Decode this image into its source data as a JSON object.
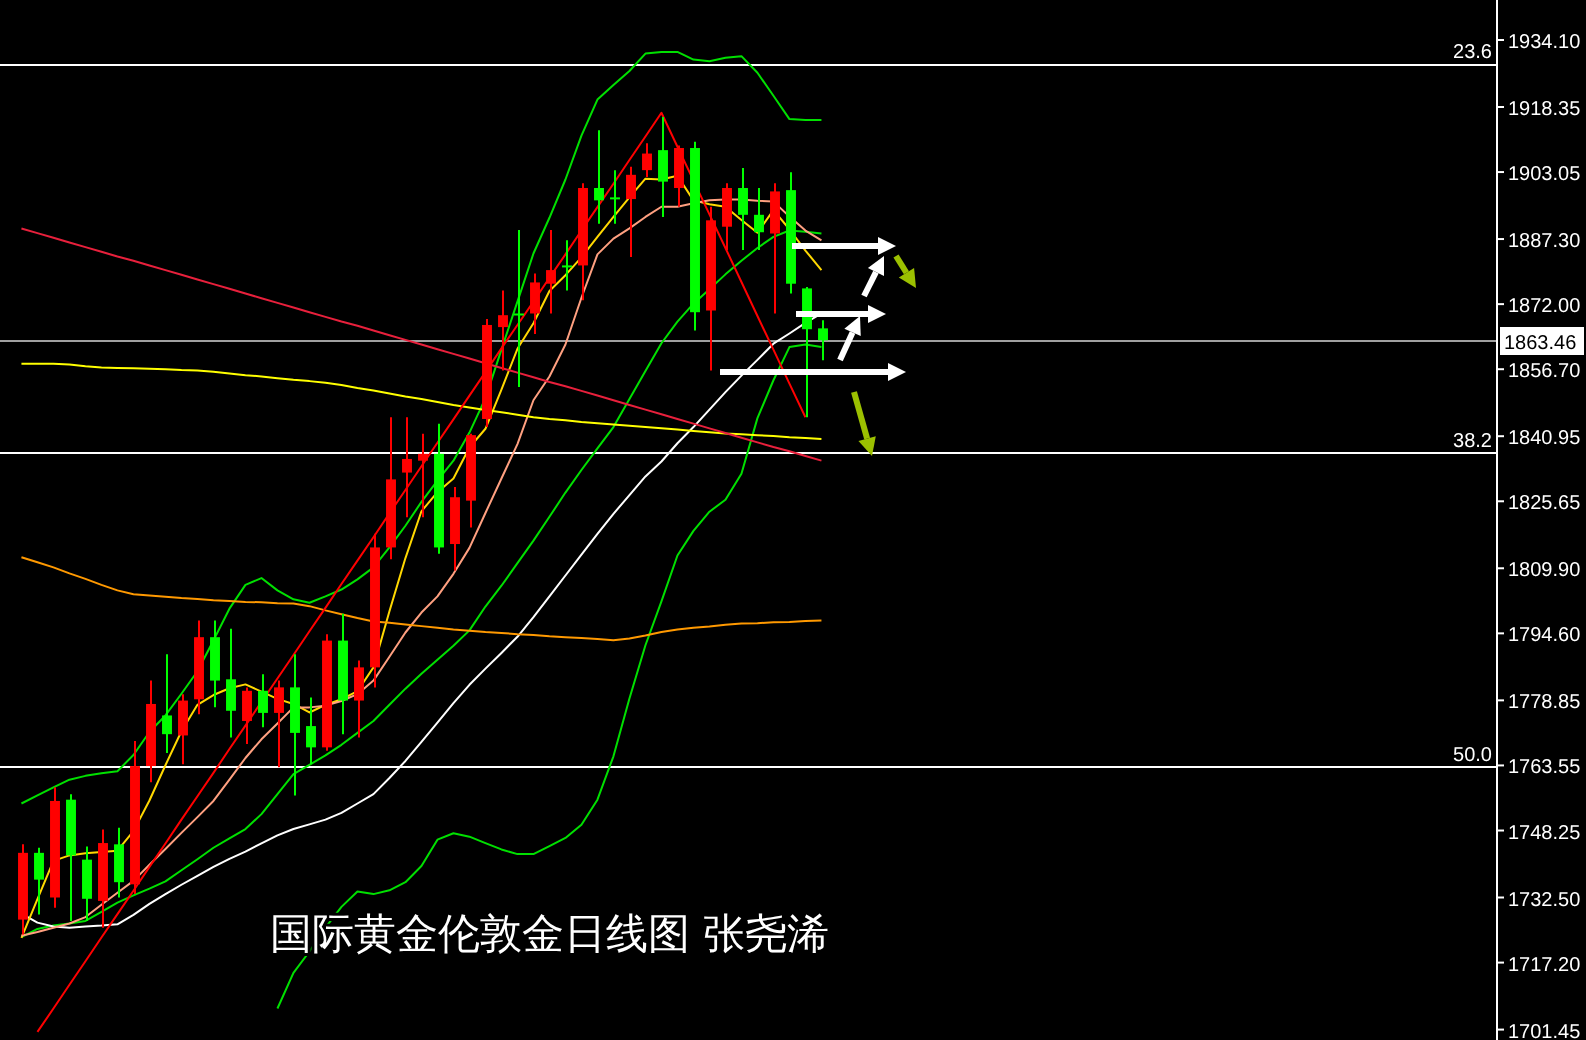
{
  "chart_data": {
    "type": "candlestick",
    "annotations": [
      "国际黄金伦敦金日线图 张尧浠",
      {
        "text": "23.6",
        "y": 1928.45
      },
      {
        "text": "38.2",
        "y": 1837.1
      },
      {
        "text": "50.0",
        "y": 1763.2
      }
    ],
    "categories": [
      null,
      null,
      null,
      null,
      null,
      null,
      null,
      null,
      null,
      null,
      null,
      null,
      null,
      null,
      null,
      null,
      null,
      null,
      null,
      null,
      null,
      null,
      null,
      null,
      null,
      null,
      null,
      null,
      null,
      null,
      null,
      null,
      null,
      null,
      null,
      null,
      null,
      null,
      null,
      null,
      null,
      null,
      null,
      null,
      null,
      null,
      null,
      null,
      null,
      null,
      null
    ],
    "ohlc": [
      [
        1727.3,
        1745.0,
        1723.8,
        1743.0
      ],
      [
        1743.0,
        1744.2,
        1728.5,
        1736.7
      ],
      [
        1732.5,
        1758.4,
        1730.1,
        1755.2
      ],
      [
        1755.5,
        1756.8,
        1727.0,
        1742.4
      ],
      [
        1741.4,
        1744.5,
        1727.0,
        1732.2
      ],
      [
        1731.7,
        1748.5,
        1725.4,
        1745.3
      ],
      [
        1745.0,
        1748.9,
        1732.5,
        1736.1
      ],
      [
        1735.6,
        1769.3,
        1733.3,
        1763.4
      ],
      [
        1763.4,
        1783.5,
        1759.6,
        1778.0
      ],
      [
        1775.3,
        1789.7,
        1766.5,
        1770.9
      ],
      [
        1770.6,
        1780.3,
        1763.8,
        1778.8
      ],
      [
        1779.1,
        1797.6,
        1775.6,
        1793.7
      ],
      [
        1793.7,
        1797.6,
        1777.2,
        1783.5
      ],
      [
        1783.8,
        1795.7,
        1770.1,
        1776.4
      ],
      [
        1774.0,
        1781.9,
        1768.6,
        1781.1
      ],
      [
        1781.1,
        1785.0,
        1772.5,
        1775.9
      ],
      [
        1775.9,
        1783.5,
        1763.1,
        1781.9
      ],
      [
        1781.9,
        1789.7,
        1756.5,
        1771.2
      ],
      [
        1772.8,
        1779.5,
        1763.8,
        1767.8
      ],
      [
        1767.8,
        1794.4,
        1767.0,
        1792.9
      ],
      [
        1792.9,
        1799.2,
        1770.9,
        1778.8
      ],
      [
        1778.8,
        1788.2,
        1770.1,
        1786.6
      ],
      [
        1786.6,
        1818.0,
        1781.9,
        1814.8
      ],
      [
        1814.8,
        1845.4,
        1812.0,
        1830.8
      ],
      [
        1832.4,
        1845.4,
        1821.9,
        1835.6
      ],
      [
        1835.2,
        1841.5,
        1821.9,
        1836.8
      ],
      [
        1836.8,
        1843.9,
        1813.3,
        1814.8
      ],
      [
        1815.6,
        1829.0,
        1809.4,
        1826.6
      ],
      [
        1825.8,
        1841.5,
        1819.5,
        1841.2
      ],
      [
        1845.0,
        1868.5,
        1843.1,
        1867.1
      ],
      [
        1866.6,
        1875.2,
        1856.4,
        1869.4
      ],
      [
        1869.8,
        1889.4,
        1852.5,
        1869.4
      ],
      [
        1869.8,
        1879.2,
        1865.0,
        1877.1
      ],
      [
        1876.8,
        1889.4,
        1869.8,
        1880.0
      ],
      [
        1881.1,
        1887.0,
        1875.2,
        1880.7
      ],
      [
        1881.1,
        1900.4,
        1872.9,
        1899.3
      ],
      [
        1899.3,
        1912.9,
        1890.9,
        1896.4
      ],
      [
        1897.1,
        1903.5,
        1890.9,
        1896.7
      ],
      [
        1896.7,
        1904.3,
        1883.1,
        1902.4
      ],
      [
        1903.5,
        1909.8,
        1901.9,
        1907.4
      ],
      [
        1908.2,
        1916.0,
        1892.5,
        1900.8
      ],
      [
        1899.3,
        1909.3,
        1894.9,
        1908.7
      ],
      [
        1908.7,
        1910.2,
        1865.8,
        1870.1
      ],
      [
        1870.5,
        1894.9,
        1856.4,
        1891.7
      ],
      [
        1890.2,
        1900.4,
        1884.7,
        1899.3
      ],
      [
        1899.3,
        1904.0,
        1884.7,
        1893.0
      ],
      [
        1893.0,
        1899.3,
        1884.7,
        1888.9
      ],
      [
        1888.6,
        1900.4,
        1869.8,
        1898.5
      ],
      [
        1898.8,
        1903.0,
        1874.5,
        1876.8
      ],
      [
        1875.7,
        1876.0,
        1845.4,
        1866.1
      ],
      [
        1866.3,
        1868.2,
        1858.8,
        1863.5
      ]
    ],
    "colors": [
      "#ff0000",
      "#00ff00",
      "#ff0000",
      "#00ff00",
      "#00ff00",
      "#ff0000",
      "#00ff00",
      "#ff0000",
      "#ff0000",
      "#00ff00",
      "#ff0000",
      "#ff0000",
      "#00ff00",
      "#00ff00",
      "#ff0000",
      "#00ff00",
      "#ff0000",
      "#00ff00",
      "#00ff00",
      "#ff0000",
      "#00ff00",
      "#ff0000",
      "#ff0000",
      "#ff0000",
      "#ff0000",
      "#ff0000",
      "#00ff00",
      "#ff0000",
      "#ff0000",
      "#ff0000",
      "#ff0000",
      "#00ff00",
      "#ff0000",
      "#ff0000",
      "#00ff00",
      "#ff0000",
      "#00ff00",
      "#00ff00",
      "#ff0000",
      "#ff0000",
      "#00ff00",
      "#ff0000",
      "#00ff00",
      "#ff0000",
      "#ff0000",
      "#00ff00",
      "#00ff00",
      "#ff0000",
      "#00ff00",
      "#00ff00",
      "#00ff00"
    ],
    "series": [
      {
        "type": "line",
        "color": "#00e000",
        "values": [
          1754.6,
          1756.5,
          1758.4,
          1760.2,
          1761.1,
          1761.7,
          1762.2,
          1766.0,
          1771.4,
          1775.3,
          1780.4,
          1785.7,
          1792.9,
          1800.4,
          1806.0,
          1807.6,
          1804.7,
          1802.6,
          1801.8,
          1803.3,
          1804.9,
          1807.3,
          1810.1,
          1814.8,
          1819.9,
          1825.5,
          1830.5,
          1835.2,
          1841.8,
          1849.9,
          1861.3,
          1872.6,
          1883.9,
          1892.3,
          1901.3,
          1911.6,
          1920.1,
          1923.5,
          1926.8,
          1930.9,
          1931.3,
          1931.3,
          1929.5,
          1929.1,
          1929.9,
          1930.3,
          1926.4,
          1921.0,
          1915.5,
          1915.3,
          1915.3
        ]
      },
      {
        "type": "line",
        "color": "#00e000",
        "values": [
          1723.2,
          1725.1,
          1725.9,
          1726.4,
          1727.0,
          1729.1,
          1731.3,
          1733.0,
          1734.6,
          1736.3,
          1738.9,
          1741.5,
          1744.2,
          1746.4,
          1748.6,
          1752.1,
          1756.8,
          1761.5,
          1763.7,
          1765.9,
          1768.4,
          1771.2,
          1774.0,
          1777.8,
          1781.6,
          1785.1,
          1788.4,
          1791.7,
          1795.3,
          1800.9,
          1805.8,
          1811.1,
          1816.4,
          1822.0,
          1827.7,
          1833.0,
          1838.1,
          1843.1,
          1849.7,
          1856.3,
          1862.8,
          1867.9,
          1872.1,
          1875.5,
          1879.0,
          1882.2,
          1885.2,
          1887.8,
          1889.3,
          1889.0,
          1888.6
        ]
      },
      {
        "type": "line",
        "color": "#00e000",
        "values": [
          null,
          null,
          null,
          null,
          null,
          null,
          null,
          null,
          null,
          null,
          null,
          null,
          null,
          null,
          null,
          null,
          1706.4,
          1714.8,
          1719.8,
          1725.4,
          1730.3,
          1733.9,
          1733.3,
          1734.2,
          1736.1,
          1739.9,
          1746.1,
          1747.6,
          1746.8,
          1745.3,
          1743.8,
          1742.7,
          1742.7,
          1744.6,
          1746.5,
          1749.6,
          1755.5,
          1765.7,
          1779.3,
          1791.8,
          1802.1,
          1812.9,
          1818.7,
          1823.2,
          1826.0,
          1832.1,
          1845.2,
          1854.1,
          1861.9,
          1862.5,
          1861.9
        ]
      },
      {
        "type": "line",
        "color": "#ffffff",
        "values": [
          1728.7,
          1726.6,
          1725.7,
          1725.4,
          1725.7,
          1725.9,
          1726.2,
          1728.4,
          1731.0,
          1733.3,
          1735.5,
          1737.6,
          1739.7,
          1741.6,
          1743.3,
          1745.2,
          1747.1,
          1748.6,
          1749.7,
          1750.8,
          1752.4,
          1754.6,
          1756.8,
          1760.6,
          1764.6,
          1769.1,
          1773.6,
          1778.2,
          1782.5,
          1786.3,
          1790.0,
          1793.8,
          1798.4,
          1803.3,
          1808.2,
          1813.1,
          1818.0,
          1822.7,
          1827.1,
          1831.5,
          1835.0,
          1839.3,
          1843.1,
          1847.2,
          1851.3,
          1855.2,
          1858.9,
          1862.7,
          1865.1,
          1867.6,
          1869.8
        ]
      },
      {
        "type": "line",
        "color": "#ffd800",
        "values": [
          1723.0,
          1732.1,
          1741.1,
          1742.4,
          1742.9,
          1743.2,
          1743.5,
          1748.1,
          1755.3,
          1763.6,
          1771.6,
          1777.8,
          1780.1,
          1781.7,
          1782.6,
          1780.9,
          1779.2,
          1778.0,
          1776.0,
          1777.8,
          1779.1,
          1781.0,
          1786.6,
          1799.8,
          1812.3,
          1823.3,
          1827.8,
          1831.0,
          1838.3,
          1842.7,
          1851.9,
          1861.5,
          1867.5,
          1875.1,
          1878.8,
          1883.0,
          1887.8,
          1892.5,
          1897.1,
          1901.5,
          1901.3,
          1902.2,
          1896.4,
          1895.5,
          1894.9,
          1891.8,
          1888.8,
          1894.1,
          1889.6,
          1884.6,
          1880.0
        ]
      },
      {
        "type": "line",
        "color": "#ffa080",
        "values": [
          1723.5,
          1724.4,
          1725.4,
          1726.4,
          1727.9,
          1730.8,
          1733.6,
          1736.4,
          1740.2,
          1743.9,
          1747.7,
          1751.4,
          1755.2,
          1760.2,
          1765.3,
          1769.7,
          1773.4,
          1777.2,
          1777.2,
          1777.6,
          1778.7,
          1780.3,
          1783.5,
          1789.1,
          1794.8,
          1799.5,
          1803.3,
          1808.6,
          1814.7,
          1822.9,
          1831.0,
          1839.1,
          1849.4,
          1855.0,
          1862.5,
          1873.5,
          1883.7,
          1887.4,
          1889.8,
          1892.5,
          1894.9,
          1894.9,
          1895.7,
          1896.4,
          1896.6,
          1896.6,
          1896.3,
          1896.1,
          1892.6,
          1889.3,
          1887.0
        ]
      },
      {
        "type": "line",
        "color": "#ff9900",
        "values": [
          1812.5,
          1811.3,
          1810.1,
          1808.7,
          1807.4,
          1806.0,
          1804.7,
          1803.8,
          1803.5,
          1803.2,
          1802.9,
          1802.7,
          1802.4,
          1802.2,
          1802.0,
          1801.9,
          1801.7,
          1801.6,
          1801.0,
          1800.0,
          1799.1,
          1798.2,
          1797.4,
          1797.1,
          1796.7,
          1796.3,
          1795.9,
          1795.5,
          1795.2,
          1794.9,
          1794.7,
          1794.4,
          1794.2,
          1793.9,
          1793.7,
          1793.5,
          1793.3,
          1793.0,
          1793.4,
          1794.1,
          1794.9,
          1795.5,
          1795.9,
          1796.2,
          1796.6,
          1796.9,
          1797.0,
          1797.2,
          1797.3,
          1797.5,
          1797.6
        ]
      },
      {
        "type": "line",
        "color": "#ffff00",
        "values": [
          1858.0,
          1858.0,
          1858.0,
          1857.8,
          1857.4,
          1857.1,
          1857.0,
          1856.9,
          1856.8,
          1856.7,
          1856.5,
          1856.4,
          1856.1,
          1855.7,
          1855.3,
          1855.0,
          1854.6,
          1854.2,
          1853.9,
          1853.5,
          1853.0,
          1852.3,
          1851.7,
          1851.0,
          1850.3,
          1849.7,
          1849.0,
          1848.3,
          1847.7,
          1847.1,
          1846.6,
          1846.0,
          1845.4,
          1845.0,
          1844.7,
          1844.3,
          1844.0,
          1843.7,
          1843.4,
          1843.1,
          1842.8,
          1842.5,
          1842.2,
          1841.9,
          1841.6,
          1841.4,
          1841.2,
          1841.0,
          1840.7,
          1840.5,
          1840.3
        ]
      },
      {
        "type": "line",
        "color": "#e8203c",
        "values": [
          1889.8,
          1888.7,
          1887.6,
          1886.5,
          1885.4,
          1884.3,
          1883.2,
          1882.2,
          1881.1,
          1880.0,
          1878.9,
          1877.8,
          1876.7,
          1875.6,
          1874.5,
          1873.4,
          1872.3,
          1871.2,
          1870.1,
          1869.0,
          1867.9,
          1866.9,
          1865.8,
          1864.7,
          1863.6,
          1862.5,
          1861.4,
          1860.3,
          1859.2,
          1858.1,
          1857.0,
          1855.9,
          1854.8,
          1853.7,
          1852.7,
          1851.6,
          1850.5,
          1849.4,
          1848.3,
          1847.2,
          1846.1,
          1845.0,
          1843.9,
          1842.8,
          1841.7,
          1840.6,
          1839.5,
          1838.4,
          1837.4,
          1836.3,
          1835.2
        ]
      },
      {
        "type": "line",
        "color": "#ff0000",
        "values": [
          null,
          1700.9,
          1706.4,
          1712.0,
          1717.5,
          1723.1,
          1728.6,
          1734.1,
          1739.7,
          1745.2,
          1750.8,
          1756.3,
          1761.8,
          1767.4,
          1772.9,
          1778.5,
          1784.0,
          1789.5,
          1795.1,
          1800.6,
          1806.2,
          1811.7,
          1817.2,
          1822.8,
          1828.3,
          1833.9,
          1839.4,
          1844.9,
          1850.5,
          1856.0,
          1861.6,
          1867.1,
          1872.6,
          1878.2,
          1883.7,
          1889.3,
          1894.8,
          1900.3,
          1905.9,
          1911.4,
          1917.0,
          1909.0,
          1901.1,
          1893.1,
          1885.2,
          1877.2,
          1869.2,
          1861.3,
          1853.3,
          1845.4,
          null
        ]
      }
    ],
    "ref_lines": [
      {
        "axis": "y",
        "value": 1928.45
      },
      {
        "axis": "y",
        "value": 1837.1
      },
      {
        "axis": "y",
        "value": 1763.2
      },
      {
        "axis": "y",
        "value": 1863.46,
        "label": "1863.46",
        "color": "#a0a0a0"
      }
    ],
    "ylim": [
      1699.0,
      1943.5
    ],
    "yticks": [
      {
        "value": 1934.1,
        "label": "1934.10"
      },
      {
        "value": 1918.35,
        "label": "1918.35"
      },
      {
        "value": 1903.05,
        "label": "1903.05"
      },
      {
        "value": 1887.3,
        "label": "1887.30"
      },
      {
        "value": 1872.0,
        "label": "1872.00"
      },
      {
        "value": 1856.7,
        "label": "1856.70"
      },
      {
        "value": 1840.95,
        "label": "1840.95"
      },
      {
        "value": 1825.65,
        "label": "1825.65"
      },
      {
        "value": 1809.9,
        "label": "1809.90"
      },
      {
        "value": 1794.6,
        "label": "1794.60"
      },
      {
        "value": 1778.85,
        "label": "1778.85"
      },
      {
        "value": 1763.55,
        "label": "1763.55"
      },
      {
        "value": 1748.25,
        "label": "1748.25"
      },
      {
        "value": 1732.5,
        "label": "1732.50"
      },
      {
        "value": 1717.2,
        "label": "1717.20"
      },
      {
        "value": 1701.45,
        "label": "1701.45"
      }
    ],
    "tick_labels": "y"
  }
}
